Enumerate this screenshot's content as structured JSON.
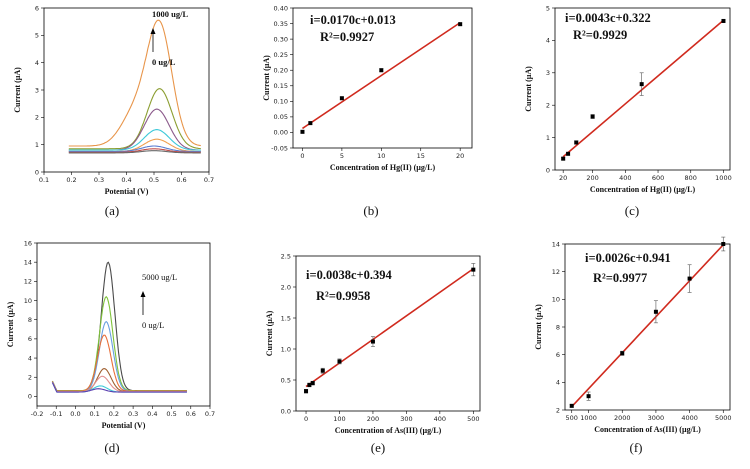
{
  "chart_data": [
    {
      "id": "a",
      "type": "line",
      "panel_label": "(a)",
      "xlabel": "Potential (V)",
      "ylabel": "Current (µA)",
      "xlim": [
        0.1,
        0.7
      ],
      "ylim": [
        0,
        6
      ],
      "xticks": [
        "0.1",
        "0.2",
        "0.3",
        "0.4",
        "0.5",
        "0.6",
        "0.7"
      ],
      "yticks": [
        "0",
        "1",
        "2",
        "3",
        "4",
        "5",
        "6"
      ],
      "annotations": {
        "top": "1000 ug/L",
        "bottom": "0 ug/L"
      },
      "series": [
        {
          "color": "#e8954a",
          "peak_x": 0.52,
          "peak_y": 5.3,
          "base": 0.95
        },
        {
          "color": "#8c9e32",
          "peak_x": 0.52,
          "peak_y": 3.05,
          "base": 0.85
        },
        {
          "color": "#8b5a8b",
          "peak_x": 0.51,
          "peak_y": 2.3,
          "base": 0.8
        },
        {
          "color": "#3ec9d9",
          "peak_x": 0.51,
          "peak_y": 1.55,
          "base": 0.8
        },
        {
          "color": "#f0a050",
          "peak_x": 0.51,
          "peak_y": 1.2,
          "base": 0.75
        },
        {
          "color": "#5b7fd1",
          "peak_x": 0.5,
          "peak_y": 0.95,
          "base": 0.75
        },
        {
          "color": "#c0504d",
          "peak_x": 0.5,
          "peak_y": 0.85,
          "base": 0.72
        },
        {
          "color": "#6a6a6a",
          "peak_x": 0.5,
          "peak_y": 0.78,
          "base": 0.7
        }
      ]
    },
    {
      "id": "b",
      "type": "scatter",
      "panel_label": "(b)",
      "xlabel": "Concentration of Hg(II) (µg/L)",
      "ylabel": "Current (µA)",
      "xlim": [
        -1.2,
        21.5
      ],
      "ylim": [
        -0.05,
        0.4
      ],
      "xticks": [
        0,
        5,
        10,
        15,
        20
      ],
      "yticks": [
        "-0.05",
        "0.00",
        "0.05",
        "0.10",
        "0.15",
        "0.20",
        "0.25",
        "0.30",
        "0.35",
        "0.40"
      ],
      "equation": "i=0.0170c+0.013",
      "r2": "R²=0.9927",
      "fit": {
        "slope": 0.017,
        "intercept": 0.013,
        "x_range": [
          0,
          20
        ]
      },
      "points": [
        {
          "x": 0,
          "y": 0.002,
          "err": 0.004
        },
        {
          "x": 1,
          "y": 0.03,
          "err": 0.004
        },
        {
          "x": 5,
          "y": 0.11,
          "err": 0.004
        },
        {
          "x": 10,
          "y": 0.2,
          "err": 0.005
        },
        {
          "x": 20,
          "y": 0.348,
          "err": 0.004
        }
      ]
    },
    {
      "id": "c",
      "type": "scatter",
      "panel_label": "(c)",
      "xlabel": "Concentration of Hg(II) (µg/L)",
      "ylabel": "Current (µA)",
      "xlim": [
        -30,
        1040
      ],
      "ylim": [
        0,
        5
      ],
      "xticks": [
        20,
        200,
        400,
        600,
        800,
        1000
      ],
      "yticks": [
        "0",
        "1",
        "2",
        "3",
        "4",
        "5"
      ],
      "equation": "i=0.0043c+0.322",
      "r2": "R²=0.9929",
      "fit": {
        "slope": 0.0043,
        "intercept": 0.322,
        "x_range": [
          20,
          1000
        ]
      },
      "points": [
        {
          "x": 20,
          "y": 0.35,
          "err": 0.04
        },
        {
          "x": 50,
          "y": 0.5,
          "err": 0.04
        },
        {
          "x": 100,
          "y": 0.85,
          "err": 0.05
        },
        {
          "x": 200,
          "y": 1.65,
          "err": 0.06
        },
        {
          "x": 500,
          "y": 2.65,
          "err": 0.35
        },
        {
          "x": 1000,
          "y": 4.6,
          "err": 0.05
        }
      ]
    },
    {
      "id": "d",
      "type": "line",
      "panel_label": "(d)",
      "xlabel": "Potential (V)",
      "ylabel": "Current (µA)",
      "xlim": [
        -0.2,
        0.7
      ],
      "ylim": [
        -1,
        16
      ],
      "xticks": [
        "-0.2",
        "-0.1",
        "0.0",
        "0.1",
        "0.2",
        "0.3",
        "0.4",
        "0.5",
        "0.6",
        "0.7"
      ],
      "yticks": [
        "0",
        "2",
        "4",
        "6",
        "8",
        "10",
        "12",
        "14",
        "16"
      ],
      "annotations": {
        "top": "5000 ug/L",
        "bottom": "0 ug/L"
      },
      "series": [
        {
          "color": "#4a4a4a",
          "peak_x": 0.17,
          "peak_y": 14.0,
          "base": 0.6
        },
        {
          "color": "#7fc23a",
          "peak_x": 0.16,
          "peak_y": 10.4,
          "base": 0.6
        },
        {
          "color": "#6aa0e0",
          "peak_x": 0.16,
          "peak_y": 7.8,
          "base": 0.55
        },
        {
          "color": "#e8703a",
          "peak_x": 0.15,
          "peak_y": 6.4,
          "base": 0.55
        },
        {
          "color": "#a06030",
          "peak_x": 0.15,
          "peak_y": 2.9,
          "base": 0.5
        },
        {
          "color": "#e09090",
          "peak_x": 0.14,
          "peak_y": 2.1,
          "base": 0.5
        },
        {
          "color": "#3ec9d9",
          "peak_x": 0.13,
          "peak_y": 1.1,
          "base": 0.45
        },
        {
          "color": "#5b3fb1",
          "peak_x": 0.12,
          "peak_y": 0.8,
          "base": 0.45
        }
      ]
    },
    {
      "id": "e",
      "type": "scatter",
      "panel_label": "(e)",
      "xlabel": "Concentration of As(III) (µg/L)",
      "ylabel": "Current (µA)",
      "xlim": [
        -30,
        520
      ],
      "ylim": [
        0,
        2.5
      ],
      "xticks": [
        0,
        100,
        200,
        300,
        400,
        500
      ],
      "yticks": [
        "0.0",
        "0.5",
        "1.0",
        "1.5",
        "2.0",
        "2.5"
      ],
      "equation": "i=0.0038c+0.394",
      "r2": "R²=0.9958",
      "fit": {
        "slope": 0.0038,
        "intercept": 0.394,
        "x_range": [
          0,
          500
        ]
      },
      "points": [
        {
          "x": 0,
          "y": 0.32,
          "err": 0.03
        },
        {
          "x": 10,
          "y": 0.42,
          "err": 0.03
        },
        {
          "x": 20,
          "y": 0.45,
          "err": 0.03
        },
        {
          "x": 50,
          "y": 0.65,
          "err": 0.04
        },
        {
          "x": 100,
          "y": 0.8,
          "err": 0.04
        },
        {
          "x": 200,
          "y": 1.12,
          "err": 0.08
        },
        {
          "x": 500,
          "y": 2.28,
          "err": 0.1
        }
      ]
    },
    {
      "id": "f",
      "type": "scatter",
      "panel_label": "(f)",
      "xlabel": "Concentration of As(III) (µg/L)",
      "ylabel": "Current (µA)",
      "xlim": [
        300,
        5200
      ],
      "ylim": [
        2,
        14
      ],
      "xticks": [
        500,
        1000,
        2000,
        3000,
        4000,
        5000
      ],
      "yticks": [
        "2",
        "4",
        "6",
        "8",
        "10",
        "12",
        "14"
      ],
      "equation": "i=0.0026c+0.941",
      "r2": "R²=0.9977",
      "fit": {
        "slope": 0.0026,
        "intercept": 0.941,
        "x_range": [
          500,
          5000
        ]
      },
      "points": [
        {
          "x": 500,
          "y": 2.3,
          "err": 0.1
        },
        {
          "x": 1000,
          "y": 3.0,
          "err": 0.3
        },
        {
          "x": 2000,
          "y": 6.1,
          "err": 0.15
        },
        {
          "x": 3000,
          "y": 9.1,
          "err": 0.8
        },
        {
          "x": 4000,
          "y": 11.5,
          "err": 1.0
        },
        {
          "x": 5000,
          "y": 14.0,
          "err": 0.5
        }
      ]
    }
  ]
}
